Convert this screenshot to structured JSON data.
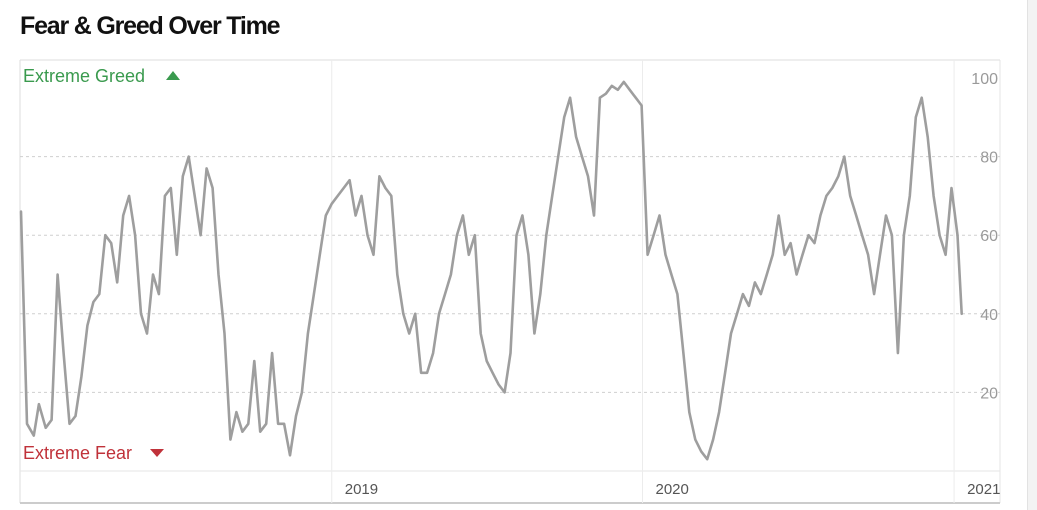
{
  "title": "Fear & Greed Over Time",
  "zone_labels": {
    "greed": "Extreme Greed",
    "fear": "Extreme Fear"
  },
  "colors": {
    "line": "#9e9e9e",
    "greed": "#3a9a4e",
    "fear": "#c0323a",
    "grid": "#cfcfcf"
  },
  "chart_data": {
    "type": "line",
    "title": "Fear & Greed Over Time",
    "xlabel": "",
    "ylabel": "",
    "ylim": [
      0,
      100
    ],
    "xlim": [
      "2018-01-01",
      "2021-01-15"
    ],
    "y_ticks": [
      20,
      40,
      60,
      80,
      100
    ],
    "x_ticks": [
      {
        "date": "2019-01-01",
        "label": "2019"
      },
      {
        "date": "2020-01-01",
        "label": "2020"
      },
      {
        "date": "2021-01-01",
        "label": "2021"
      }
    ],
    "grid": "horizontal dashed",
    "series": [
      {
        "color": "#9e9e9e",
        "points": [
          [
            "2018-01-01",
            66
          ],
          [
            "2018-01-08",
            12
          ],
          [
            "2018-01-16",
            9
          ],
          [
            "2018-01-22",
            17
          ],
          [
            "2018-01-30",
            11
          ],
          [
            "2018-02-06",
            13
          ],
          [
            "2018-02-13",
            50
          ],
          [
            "2018-02-20",
            30
          ],
          [
            "2018-02-27",
            12
          ],
          [
            "2018-03-06",
            14
          ],
          [
            "2018-03-13",
            24
          ],
          [
            "2018-03-20",
            37
          ],
          [
            "2018-03-27",
            43
          ],
          [
            "2018-04-03",
            45
          ],
          [
            "2018-04-10",
            60
          ],
          [
            "2018-04-17",
            58
          ],
          [
            "2018-04-24",
            48
          ],
          [
            "2018-05-01",
            65
          ],
          [
            "2018-05-08",
            70
          ],
          [
            "2018-05-15",
            60
          ],
          [
            "2018-05-22",
            40
          ],
          [
            "2018-05-29",
            35
          ],
          [
            "2018-06-05",
            50
          ],
          [
            "2018-06-12",
            45
          ],
          [
            "2018-06-19",
            70
          ],
          [
            "2018-06-26",
            72
          ],
          [
            "2018-07-03",
            55
          ],
          [
            "2018-07-10",
            75
          ],
          [
            "2018-07-17",
            80
          ],
          [
            "2018-07-24",
            70
          ],
          [
            "2018-07-31",
            60
          ],
          [
            "2018-08-07",
            77
          ],
          [
            "2018-08-14",
            72
          ],
          [
            "2018-08-21",
            50
          ],
          [
            "2018-08-28",
            35
          ],
          [
            "2018-09-04",
            8
          ],
          [
            "2018-09-11",
            15
          ],
          [
            "2018-09-18",
            10
          ],
          [
            "2018-09-25",
            12
          ],
          [
            "2018-10-02",
            28
          ],
          [
            "2018-10-09",
            10
          ],
          [
            "2018-10-16",
            12
          ],
          [
            "2018-10-23",
            30
          ],
          [
            "2018-10-30",
            12
          ],
          [
            "2018-11-06",
            12
          ],
          [
            "2018-11-13",
            4
          ],
          [
            "2018-11-20",
            14
          ],
          [
            "2018-11-27",
            20
          ],
          [
            "2018-12-04",
            35
          ],
          [
            "2018-12-11",
            45
          ],
          [
            "2018-12-18",
            55
          ],
          [
            "2018-12-25",
            65
          ],
          [
            "2019-01-01",
            68
          ],
          [
            "2019-01-08",
            70
          ],
          [
            "2019-01-15",
            72
          ],
          [
            "2019-01-22",
            74
          ],
          [
            "2019-01-29",
            65
          ],
          [
            "2019-02-05",
            70
          ],
          [
            "2019-02-12",
            60
          ],
          [
            "2019-02-19",
            55
          ],
          [
            "2019-02-26",
            75
          ],
          [
            "2019-03-05",
            72
          ],
          [
            "2019-03-12",
            70
          ],
          [
            "2019-03-19",
            50
          ],
          [
            "2019-03-26",
            40
          ],
          [
            "2019-04-02",
            35
          ],
          [
            "2019-04-09",
            40
          ],
          [
            "2019-04-16",
            25
          ],
          [
            "2019-04-23",
            25
          ],
          [
            "2019-04-30",
            30
          ],
          [
            "2019-05-07",
            40
          ],
          [
            "2019-05-14",
            45
          ],
          [
            "2019-05-21",
            50
          ],
          [
            "2019-05-28",
            60
          ],
          [
            "2019-06-04",
            65
          ],
          [
            "2019-06-11",
            55
          ],
          [
            "2019-06-18",
            60
          ],
          [
            "2019-06-25",
            35
          ],
          [
            "2019-07-02",
            28
          ],
          [
            "2019-07-09",
            25
          ],
          [
            "2019-07-16",
            22
          ],
          [
            "2019-07-23",
            20
          ],
          [
            "2019-07-30",
            30
          ],
          [
            "2019-08-06",
            60
          ],
          [
            "2019-08-13",
            65
          ],
          [
            "2019-08-20",
            55
          ],
          [
            "2019-08-27",
            35
          ],
          [
            "2019-09-03",
            45
          ],
          [
            "2019-09-10",
            60
          ],
          [
            "2019-09-17",
            70
          ],
          [
            "2019-09-24",
            80
          ],
          [
            "2019-10-01",
            90
          ],
          [
            "2019-10-08",
            95
          ],
          [
            "2019-10-15",
            85
          ],
          [
            "2019-10-22",
            80
          ],
          [
            "2019-10-29",
            75
          ],
          [
            "2019-11-05",
            65
          ],
          [
            "2019-11-12",
            95
          ],
          [
            "2019-11-19",
            96
          ],
          [
            "2019-11-26",
            98
          ],
          [
            "2019-12-03",
            97
          ],
          [
            "2019-12-10",
            99
          ],
          [
            "2019-12-17",
            97
          ],
          [
            "2019-12-24",
            95
          ],
          [
            "2019-12-31",
            93
          ],
          [
            "2020-01-07",
            55
          ],
          [
            "2020-01-14",
            60
          ],
          [
            "2020-01-21",
            65
          ],
          [
            "2020-01-28",
            55
          ],
          [
            "2020-02-04",
            50
          ],
          [
            "2020-02-11",
            45
          ],
          [
            "2020-02-18",
            30
          ],
          [
            "2020-02-25",
            15
          ],
          [
            "2020-03-03",
            8
          ],
          [
            "2020-03-10",
            5
          ],
          [
            "2020-03-17",
            3
          ],
          [
            "2020-03-24",
            8
          ],
          [
            "2020-03-31",
            15
          ],
          [
            "2020-04-07",
            25
          ],
          [
            "2020-04-14",
            35
          ],
          [
            "2020-04-21",
            40
          ],
          [
            "2020-04-28",
            45
          ],
          [
            "2020-05-05",
            42
          ],
          [
            "2020-05-12",
            48
          ],
          [
            "2020-05-19",
            45
          ],
          [
            "2020-05-26",
            50
          ],
          [
            "2020-06-02",
            55
          ],
          [
            "2020-06-09",
            65
          ],
          [
            "2020-06-16",
            55
          ],
          [
            "2020-06-23",
            58
          ],
          [
            "2020-06-30",
            50
          ],
          [
            "2020-07-07",
            55
          ],
          [
            "2020-07-14",
            60
          ],
          [
            "2020-07-21",
            58
          ],
          [
            "2020-07-28",
            65
          ],
          [
            "2020-08-04",
            70
          ],
          [
            "2020-08-11",
            72
          ],
          [
            "2020-08-18",
            75
          ],
          [
            "2020-08-25",
            80
          ],
          [
            "2020-09-01",
            70
          ],
          [
            "2020-09-08",
            65
          ],
          [
            "2020-09-15",
            60
          ],
          [
            "2020-09-22",
            55
          ],
          [
            "2020-09-29",
            45
          ],
          [
            "2020-10-06",
            55
          ],
          [
            "2020-10-13",
            65
          ],
          [
            "2020-10-20",
            60
          ],
          [
            "2020-10-27",
            30
          ],
          [
            "2020-11-03",
            60
          ],
          [
            "2020-11-10",
            70
          ],
          [
            "2020-11-17",
            90
          ],
          [
            "2020-11-24",
            95
          ],
          [
            "2020-12-01",
            85
          ],
          [
            "2020-12-08",
            70
          ],
          [
            "2020-12-15",
            60
          ],
          [
            "2020-12-22",
            55
          ],
          [
            "2020-12-29",
            72
          ],
          [
            "2021-01-05",
            60
          ],
          [
            "2021-01-10",
            40
          ]
        ]
      }
    ]
  }
}
